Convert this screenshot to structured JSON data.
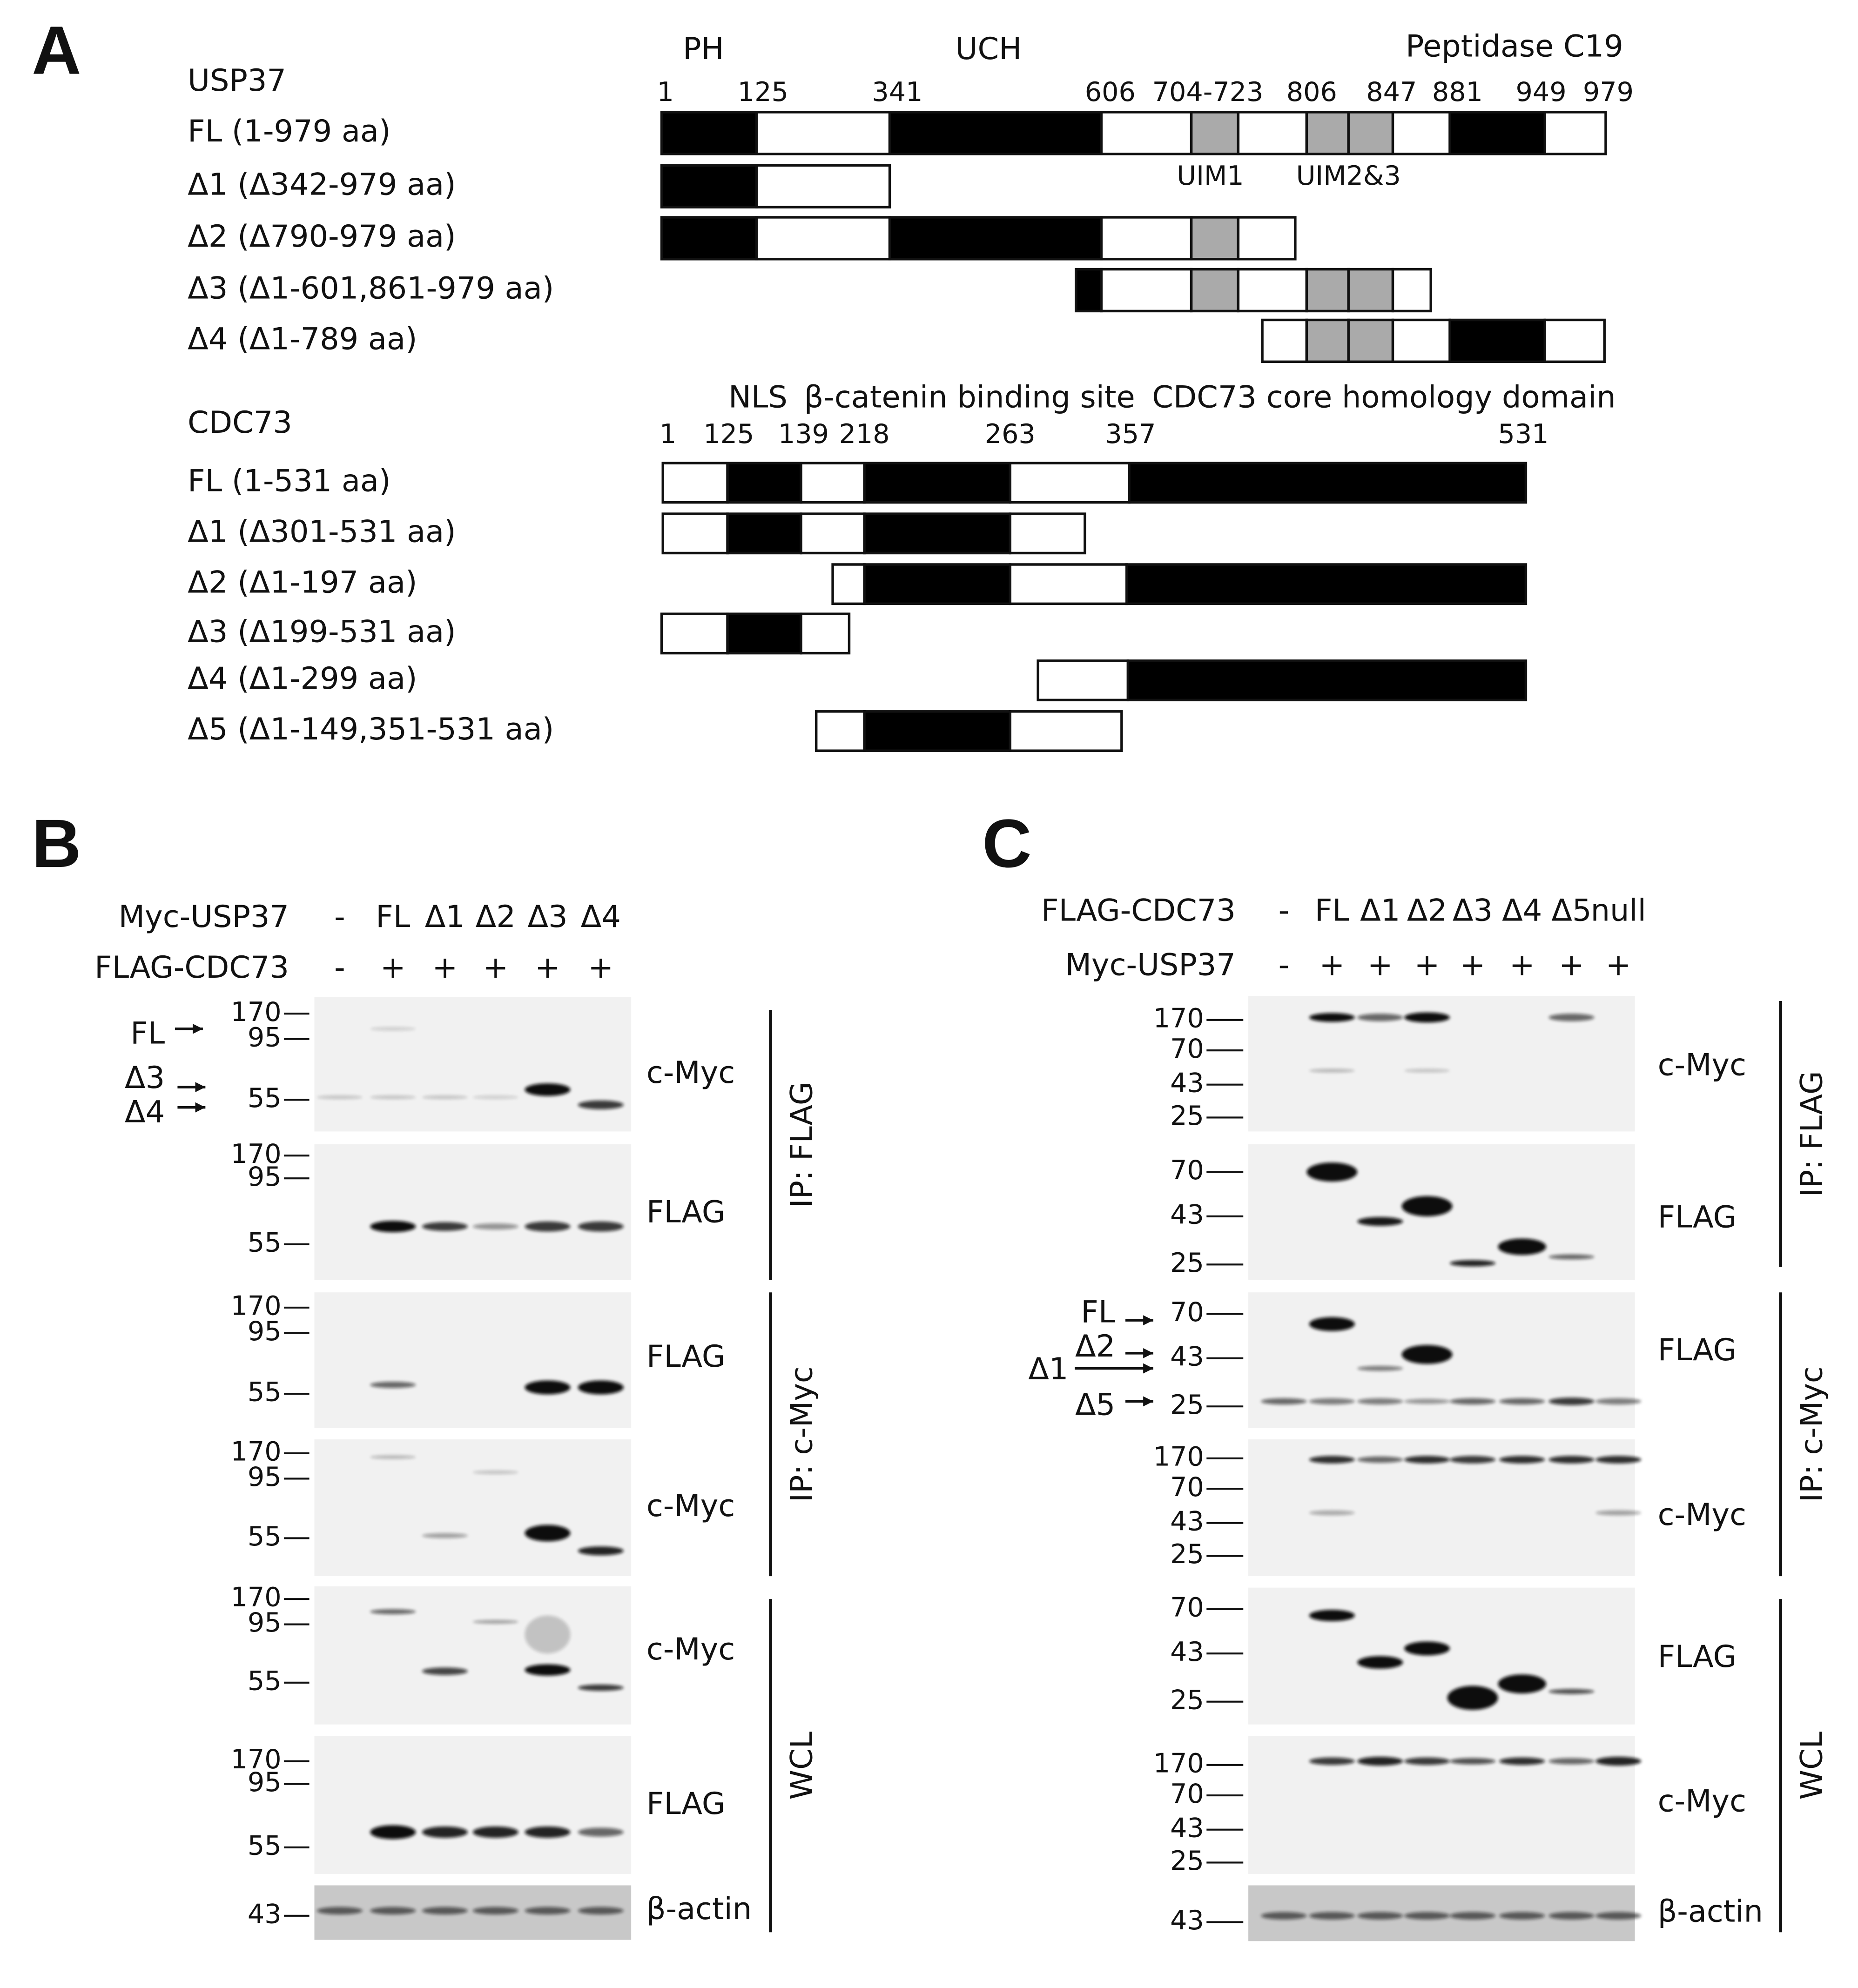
{
  "panel_a": {
    "label": "A",
    "usp37": {
      "name": "USP37",
      "domains": [
        "PH",
        "UCH",
        "Peptidase C19"
      ],
      "positions": [
        "1",
        "125",
        "341",
        "606",
        "704-723",
        "806",
        "847",
        "881",
        "949",
        "979"
      ],
      "motifs": [
        "UIM1",
        "UIM2&3"
      ],
      "constructs": [
        "FL (1-979 aa)",
        "Δ1 (Δ342-979 aa)",
        "Δ2 (Δ790-979 aa)",
        "Δ3 (Δ1-601,861-979 aa)",
        "Δ4 (Δ1-789 aa)"
      ]
    },
    "cdc73": {
      "name": "CDC73",
      "domains": [
        "NLS",
        "β-catenin binding site",
        "CDC73 core homology domain"
      ],
      "positions": [
        "1",
        "125",
        "139",
        "218",
        "263",
        "357",
        "531"
      ],
      "constructs": [
        "FL (1-531 aa)",
        "Δ1 (Δ301-531 aa)",
        "Δ2 (Δ1-197 aa)",
        "Δ3 (Δ199-531 aa)",
        "Δ4 (Δ1-299 aa)",
        "Δ5 (Δ1-149,351-531 aa)"
      ]
    }
  },
  "panel_b": {
    "label": "B",
    "rows": [
      {
        "name": "Myc-USP37",
        "lanes": [
          "-",
          "FL",
          "Δ1",
          "Δ2",
          "Δ3",
          "Δ4"
        ]
      },
      {
        "name": "FLAG-CDC73",
        "lanes": [
          "-",
          "+",
          "+",
          "+",
          "+",
          "+"
        ]
      }
    ],
    "arrows": [
      "FL",
      "Δ3",
      "Δ4"
    ],
    "blots": [
      {
        "markers": [
          170,
          95,
          55
        ],
        "antibody": "c-Myc"
      },
      {
        "markers": [
          170,
          95,
          55
        ],
        "antibody": "FLAG"
      },
      {
        "markers": [
          170,
          95,
          55
        ],
        "antibody": "FLAG"
      },
      {
        "markers": [
          170,
          95,
          55
        ],
        "antibody": "c-Myc"
      },
      {
        "markers": [
          170,
          95,
          55
        ],
        "antibody": "c-Myc"
      },
      {
        "markers": [
          170,
          95,
          55
        ],
        "antibody": "FLAG"
      },
      {
        "markers": [
          43
        ],
        "antibody": "β-actin"
      }
    ],
    "groups": [
      "IP: FLAG",
      "IP: c-Myc",
      "WCL"
    ]
  },
  "panel_c": {
    "label": "C",
    "rows": [
      {
        "name": "FLAG-CDC73",
        "lanes": [
          "-",
          "FL",
          "Δ1",
          "Δ2",
          "Δ3",
          "Δ4",
          "Δ5",
          "null"
        ]
      },
      {
        "name": "Myc-USP37",
        "lanes": [
          "-",
          "+",
          "+",
          "+",
          "+",
          "+",
          "+",
          "+"
        ]
      }
    ],
    "arrows": [
      "FL",
      "Δ2",
      "Δ1",
      "Δ5"
    ],
    "blots": [
      {
        "markers": [
          170,
          70,
          43,
          25
        ],
        "antibody": "c-Myc"
      },
      {
        "markers": [
          70,
          43,
          25
        ],
        "antibody": "FLAG"
      },
      {
        "markers": [
          70,
          43,
          25
        ],
        "antibody": "FLAG"
      },
      {
        "markers": [
          170,
          70,
          43,
          25
        ],
        "antibody": "c-Myc"
      },
      {
        "markers": [
          70,
          43,
          25
        ],
        "antibody": "FLAG"
      },
      {
        "markers": [
          170,
          70,
          43,
          25
        ],
        "antibody": "c-Myc"
      },
      {
        "markers": [
          43
        ],
        "antibody": "β-actin"
      }
    ],
    "groups": [
      "IP: FLAG",
      "IP: c-Myc",
      "WCL"
    ]
  }
}
